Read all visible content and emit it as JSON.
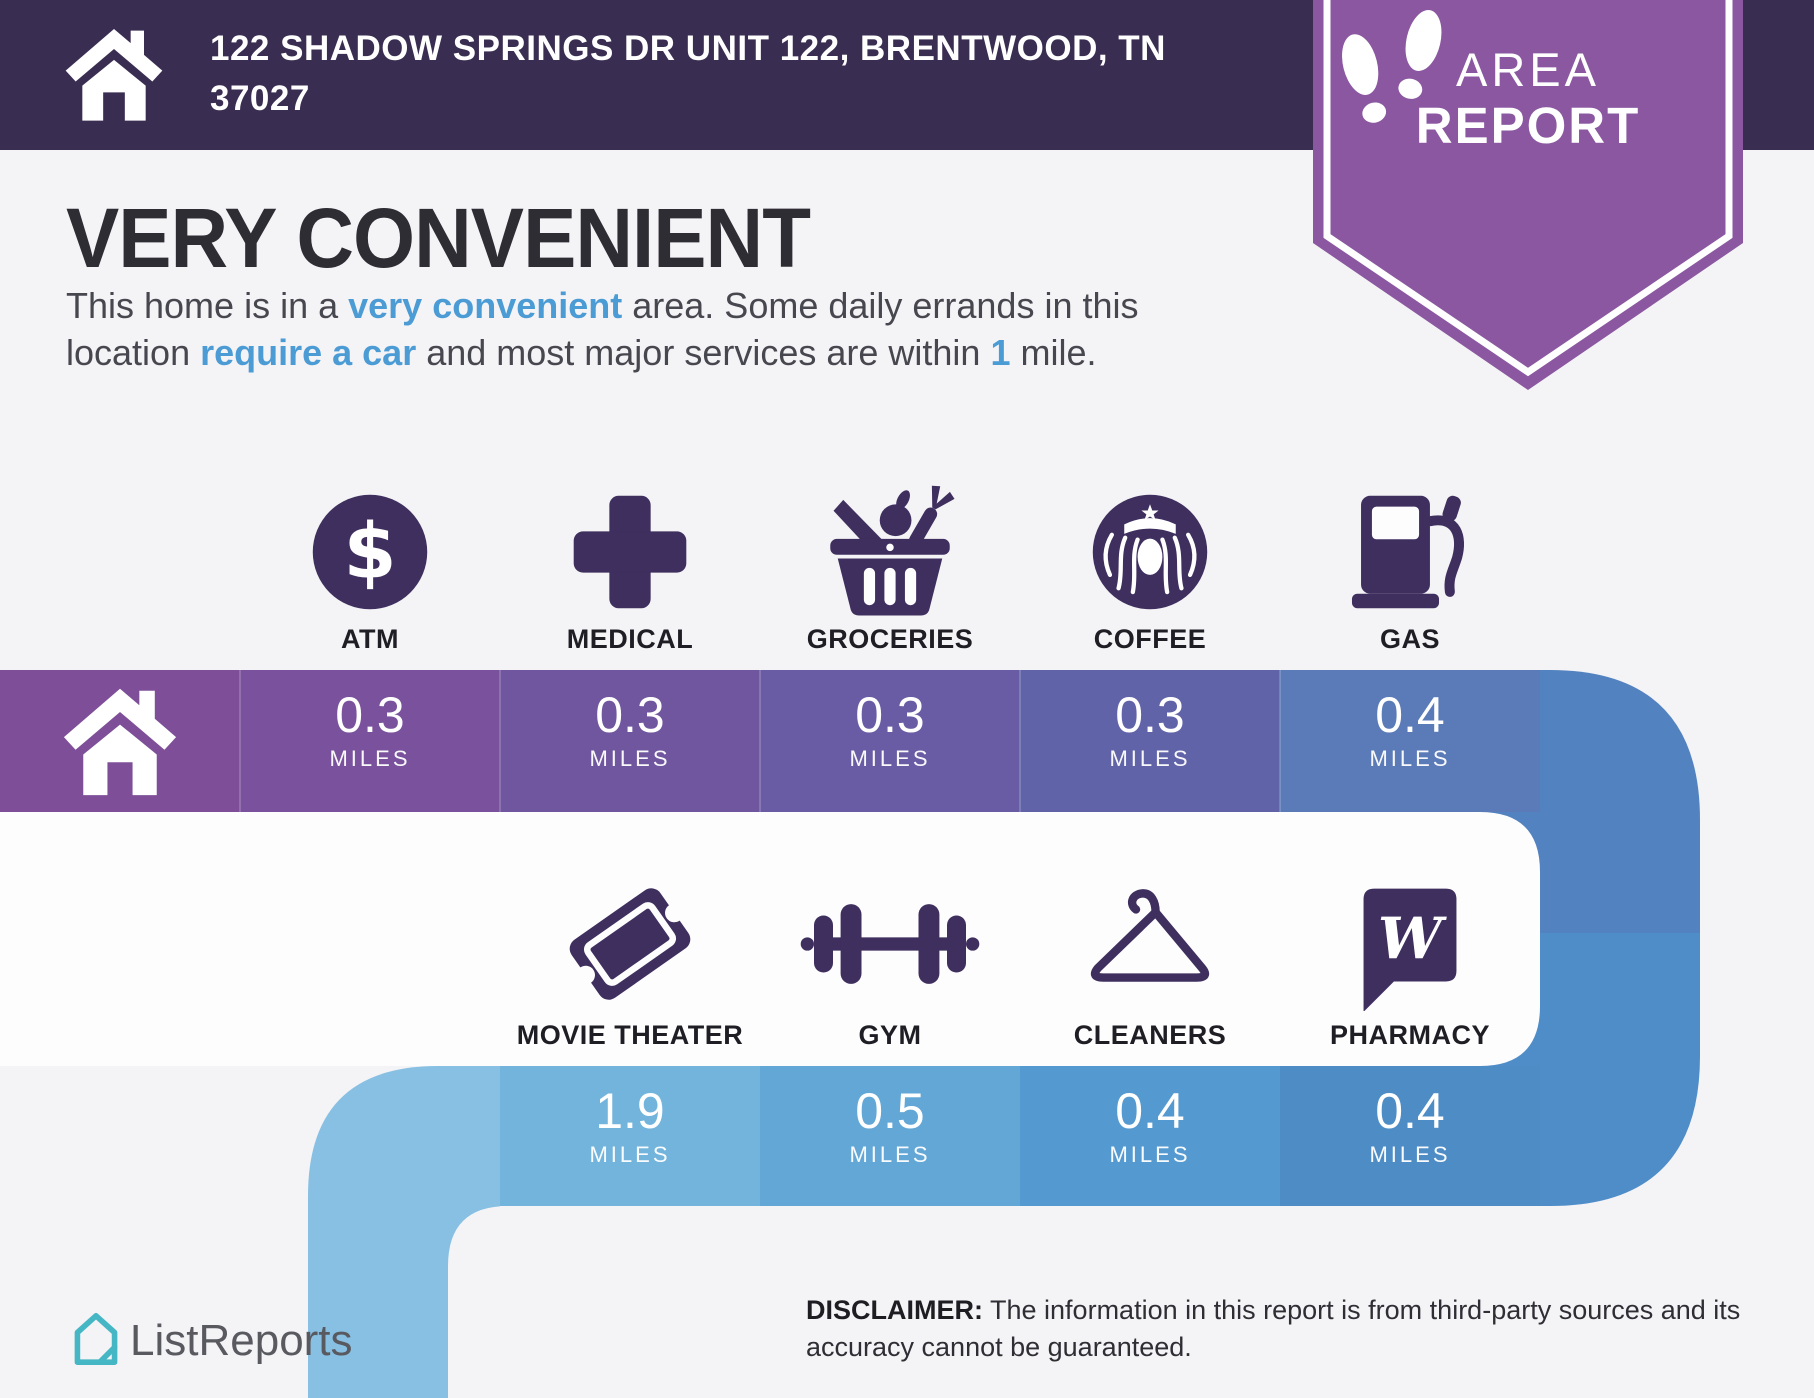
{
  "header": {
    "address": "122 SHADOW SPRINGS DR UNIT 122, BRENTWOOD, TN 37027",
    "background": "#3a2d52",
    "icon": "home-icon"
  },
  "badge": {
    "line1": "AREA",
    "line2": "REPORT",
    "color": "#8a57a0",
    "icon": "footsteps-icon"
  },
  "headline": "VERY CONVENIENT",
  "intro": {
    "lines": [
      [
        {
          "t": "This home is in a "
        },
        {
          "t": "very convenient",
          "hl": true
        },
        {
          "t": " area. Some daily errands in this"
        }
      ],
      [
        {
          "t": "location "
        },
        {
          "t": "require a car",
          "hl": true
        },
        {
          "t": " and most major services are within "
        },
        {
          "t": "1",
          "hl": true
        },
        {
          "t": " mile."
        }
      ]
    ]
  },
  "row1": {
    "origin_icon": "home-icon",
    "origin_band_color": "#7e4f98",
    "stations": [
      {
        "label": "ATM",
        "icon": "dollar-circle-icon",
        "value": "0.3",
        "unit": "MILES",
        "band_color": "#79519c"
      },
      {
        "label": "MEDICAL",
        "icon": "medical-cross-icon",
        "value": "0.3",
        "unit": "MILES",
        "band_color": "#70569f"
      },
      {
        "label": "GROCERIES",
        "icon": "grocery-basket-icon",
        "value": "0.3",
        "unit": "MILES",
        "band_color": "#695ca4"
      },
      {
        "label": "COFFEE",
        "icon": "coffee-siren-icon",
        "value": "0.3",
        "unit": "MILES",
        "band_color": "#6163a9"
      },
      {
        "label": "GAS",
        "icon": "gas-pump-icon",
        "value": "0.4",
        "unit": "MILES",
        "band_color": "#5b7ab8"
      }
    ]
  },
  "row2": {
    "stations": [
      {
        "label": "MOVIE THEATER",
        "icon": "movie-ticket-icon",
        "value": "1.9",
        "unit": "MILES",
        "band_color": "#73b4dc"
      },
      {
        "label": "GYM",
        "icon": "dumbbell-icon",
        "value": "0.5",
        "unit": "MILES",
        "band_color": "#63a7d6"
      },
      {
        "label": "CLEANERS",
        "icon": "hanger-icon",
        "value": "0.4",
        "unit": "MILES",
        "band_color": "#549ad0"
      },
      {
        "label": "PHARMACY",
        "icon": "walgreens-w-icon",
        "value": "0.4",
        "unit": "MILES",
        "band_color": "#4e8cc6"
      }
    ]
  },
  "footer": {
    "brand": "ListReports",
    "brand_icon": "listreports-logo-icon",
    "disclaimer_bold": "DISCLAIMER:",
    "disclaimer_line1_rest": " The information in this report is from third-party sources and its",
    "disclaimer_line2": "accuracy cannot be guaranteed."
  },
  "colors": {
    "page_background": "#f4f3f6",
    "white_box": "#fdfdfe",
    "icon_dark": "#3f2f5e",
    "accent_blue": "#4b9bd5",
    "heading_text": "#2e2d33",
    "body_text": "#47474f",
    "connector_top": "#5282bf",
    "connector_bottom": "#4e8dc8",
    "left_strip": "#87c0e3",
    "brand_teal": "#45b6c4",
    "footer_text": "#595960"
  }
}
